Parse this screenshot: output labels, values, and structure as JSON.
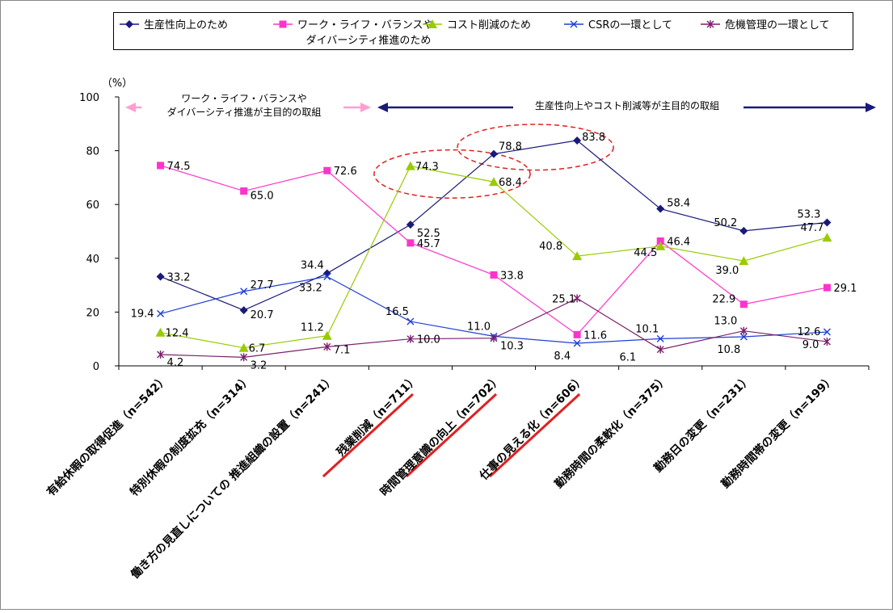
{
  "chart_data": {
    "type": "line",
    "ylabel": "（%）",
    "ylim": [
      0,
      100
    ],
    "yticks": [
      0,
      20,
      40,
      60,
      80,
      100
    ],
    "grid": false,
    "legend_position": "top",
    "categories": [
      "有給休暇の取得促進（n=542）",
      "特別休暇の制度拡充（n=314）",
      "働き方の見直しについての 推進組織の設置（n=241）",
      "残業削減（n=711）",
      "時間管理意識の向上（n=702）",
      "仕事の見える化（n=606）",
      "勤務時間の柔軟化（n=375）",
      "勤務日の変更（n=231）",
      "勤務時間帯の変更（n=199）"
    ],
    "series": [
      {
        "name": "生産性向上のため",
        "color": "#1a1a7a",
        "marker": "diamond",
        "values": [
          33.2,
          20.7,
          34.4,
          52.5,
          78.8,
          83.8,
          58.4,
          50.2,
          53.3
        ],
        "labels": [
          "33.2",
          "20.7",
          "34.4",
          "52.5",
          "78.8",
          "83.8",
          "58.4",
          "50.2",
          "53.3"
        ]
      },
      {
        "name": "ワーク・ライフ・バランスや\nダイバーシティ推進のため",
        "color": "#ff33cc",
        "marker": "square",
        "values": [
          74.5,
          65.0,
          72.6,
          45.7,
          33.8,
          11.6,
          46.4,
          22.9,
          29.1
        ],
        "labels": [
          "74.5",
          "65.0",
          "72.6",
          "45.7",
          "33.8",
          "11.6",
          "46.4",
          "22.9",
          "29.1"
        ]
      },
      {
        "name": "コスト削減のため",
        "color": "#99cc00",
        "marker": "triangle",
        "values": [
          12.4,
          6.7,
          11.2,
          74.3,
          68.4,
          40.8,
          44.5,
          39.0,
          47.7
        ],
        "labels": [
          "12.4",
          "6.7",
          "11.2",
          "74.3",
          "68.4",
          "40.8",
          "44.5",
          "39.0",
          "47.7"
        ]
      },
      {
        "name": "CSRの一環として",
        "color": "#1f3fd6",
        "marker": "x",
        "values": [
          19.4,
          27.7,
          33.2,
          16.5,
          11.0,
          8.4,
          10.1,
          10.8,
          12.6
        ],
        "labels": [
          "19.4",
          "27.7",
          "33.2",
          "16.5",
          "11.0",
          "8.4",
          "10.1",
          "10.8",
          "12.6"
        ]
      },
      {
        "name": "危機管理の一環として",
        "color": "#7a1f6b",
        "marker": "star",
        "values": [
          4.2,
          3.2,
          7.1,
          10.0,
          10.3,
          25.1,
          6.1,
          13.0,
          9.0
        ],
        "labels": [
          "4.2",
          "3.2",
          "7.1",
          "10.0",
          "10.3",
          "25.1",
          "6.1",
          "13.0",
          "9.0"
        ]
      }
    ],
    "annotations": {
      "wlb_arrow_text": "ワーク・ライフ・バランスや\nダイバーシティ推進が主目的の取組",
      "productivity_arrow_text": "生産性向上やコスト削減等が主目的の取組",
      "highlighted_categories": [
        3,
        4,
        5
      ],
      "circled_points": [
        {
          "series": 2,
          "from": 3,
          "to": 4
        },
        {
          "series": 0,
          "from": 4,
          "to": 5
        }
      ]
    }
  }
}
